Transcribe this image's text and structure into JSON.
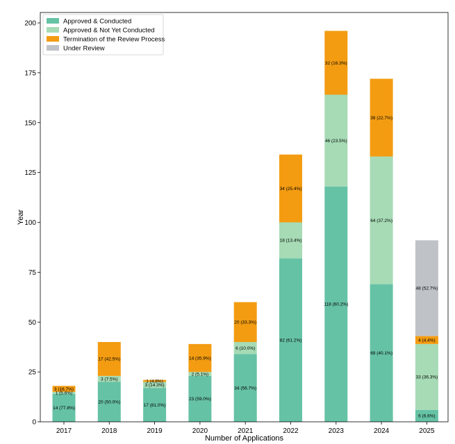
{
  "chart_data": {
    "type": "bar",
    "stacked": true,
    "xlabel": "Number of Applications",
    "ylabel": "Year",
    "ylim": [
      0,
      200
    ],
    "yticks": [
      0,
      25,
      50,
      75,
      100,
      125,
      150,
      175,
      200
    ],
    "grid": false,
    "legend_position": "top-left",
    "categories": [
      "2017",
      "2018",
      "2019",
      "2020",
      "2021",
      "2022",
      "2023",
      "2024",
      "2025"
    ],
    "series": [
      {
        "name": "Approved & Conducted",
        "color": "#66c2a5",
        "values": [
          14,
          20,
          17,
          23,
          34,
          82,
          118,
          69,
          6
        ],
        "labels": [
          "14 (77.8%)",
          "20 (50.0%)",
          "17 (81.0%)",
          "23 (59.0%)",
          "34 (56.7%)",
          "82 (61.2%)",
          "118 (60.2%)",
          "69 (40.1%)",
          "6 (6.6%)"
        ]
      },
      {
        "name": "Approved & Not Yet Conducted",
        "color": "#a6dbb5",
        "values": [
          1,
          3,
          3,
          2,
          6,
          18,
          46,
          64,
          33
        ],
        "labels": [
          "1 (5.6%)",
          "3 (7.5%)",
          "3 (14.3%)",
          "2 (5.1%)",
          "6 (10.0%)",
          "18 (13.4%)",
          "46 (23.5%)",
          "64 (37.2%)",
          "33 (36.3%)"
        ]
      },
      {
        "name": "Termination of the Review Process",
        "color": "#f39c12",
        "values": [
          3,
          17,
          1,
          14,
          20,
          34,
          32,
          39,
          4
        ],
        "labels": [
          "3 (16.7%)",
          "17 (42.5%)",
          "1 (4.8%)",
          "14 (35.9%)",
          "20 (33.3%)",
          "34 (25.4%)",
          "32 (16.3%)",
          "39 (22.7%)",
          "4 (4.4%)"
        ]
      },
      {
        "name": "Under Review",
        "color": "#bfc3c7",
        "values": [
          0,
          0,
          0,
          0,
          0,
          0,
          0,
          0,
          48
        ],
        "labels": [
          "",
          "",
          "",
          "",
          "",
          "",
          "",
          "",
          "48 (52.7%)"
        ]
      }
    ]
  }
}
